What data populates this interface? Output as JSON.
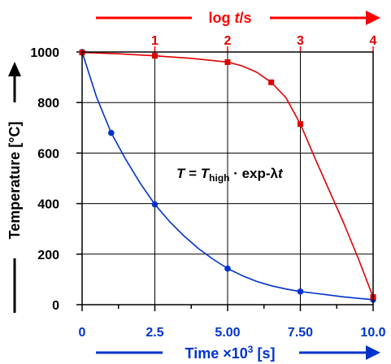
{
  "chart_data": {
    "type": "line",
    "xlabel": {
      "prefix": "Time ",
      "times": "×10",
      "exp": "3",
      "unit": "  [s]"
    },
    "ylabel": "Temperature  [°C]",
    "top_axis_label": {
      "base": "log ",
      "var": "t",
      "unit": "/s"
    },
    "annotation": {
      "T": "T",
      "eq": " = ",
      "Thigh": "T",
      "sub": "high",
      "rest": " · exp-λ",
      "t": "t"
    },
    "xlim": [
      0,
      10
    ],
    "ylim": [
      0,
      1000
    ],
    "log_xlim": [
      0,
      4
    ],
    "x_ticks": [
      {
        "v": 0,
        "label": "0"
      },
      {
        "v": 2.5,
        "label": "2.5"
      },
      {
        "v": 5,
        "label": "5.00"
      },
      {
        "v": 7.5,
        "label": "7.50"
      },
      {
        "v": 10,
        "label": "10.0"
      }
    ],
    "x_minor_ticks": [
      1.25,
      3.75,
      6.25,
      8.75
    ],
    "y_ticks": [
      {
        "v": 0,
        "label": "0"
      },
      {
        "v": 200,
        "label": "200"
      },
      {
        "v": 400,
        "label": "400"
      },
      {
        "v": 600,
        "label": "600"
      },
      {
        "v": 800,
        "label": "800"
      },
      {
        "v": 1000,
        "label": "1000"
      }
    ],
    "top_ticks": [
      {
        "v": 1,
        "label": "1"
      },
      {
        "v": 2,
        "label": "2"
      },
      {
        "v": 3,
        "label": "3"
      },
      {
        "v": 4,
        "label": "4"
      }
    ],
    "grid": true,
    "series": [
      {
        "axis": "bottom",
        "color": "#0033cc",
        "markers": [
          [
            0,
            1000
          ],
          [
            1,
            680
          ],
          [
            2.5,
            397
          ],
          [
            5,
            143
          ],
          [
            7.5,
            52
          ],
          [
            10,
            20
          ]
        ],
        "curve": [
          [
            0,
            1000
          ],
          [
            0.5,
            820
          ],
          [
            1,
            680
          ],
          [
            1.5,
            575
          ],
          [
            2,
            480
          ],
          [
            2.5,
            397
          ],
          [
            3,
            330
          ],
          [
            3.5,
            272
          ],
          [
            4,
            222
          ],
          [
            4.5,
            180
          ],
          [
            5,
            143
          ],
          [
            5.5,
            115
          ],
          [
            6,
            92
          ],
          [
            6.5,
            75
          ],
          [
            7,
            62
          ],
          [
            7.5,
            52
          ],
          [
            8,
            45
          ],
          [
            8.5,
            38
          ],
          [
            9,
            31
          ],
          [
            9.5,
            25
          ],
          [
            10,
            20
          ]
        ]
      },
      {
        "axis": "top",
        "color": "#dd0000",
        "markers": [
          [
            0,
            998
          ],
          [
            1,
            985
          ],
          [
            2,
            960
          ],
          [
            2.6,
            880
          ],
          [
            3,
            715
          ],
          [
            4,
            30
          ]
        ],
        "curve": [
          [
            0,
            998
          ],
          [
            0.5,
            993
          ],
          [
            1,
            985
          ],
          [
            1.5,
            975
          ],
          [
            2,
            960
          ],
          [
            2.2,
            945
          ],
          [
            2.4,
            920
          ],
          [
            2.6,
            880
          ],
          [
            2.8,
            820
          ],
          [
            3,
            715
          ],
          [
            3.2,
            580
          ],
          [
            3.4,
            450
          ],
          [
            3.6,
            320
          ],
          [
            3.8,
            180
          ],
          [
            4,
            30
          ]
        ]
      }
    ]
  }
}
